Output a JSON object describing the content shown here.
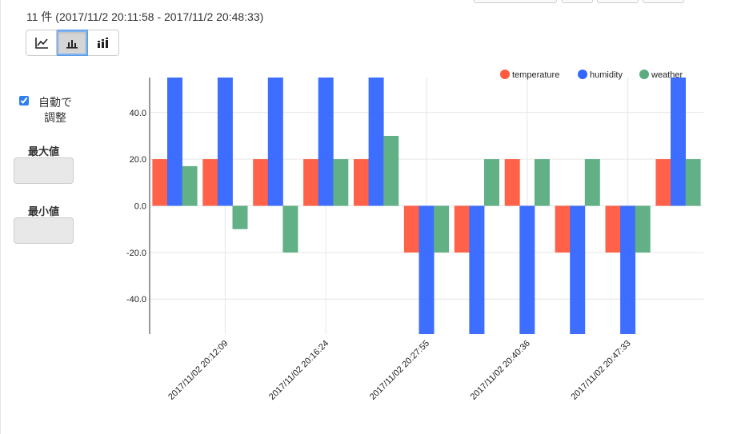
{
  "header": {
    "summary": "11 件 (2017/11/2 20:11:58 - 2017/11/2 20:48:33)"
  },
  "toolbar": {
    "buttons": [
      {
        "name": "line-chart-button",
        "icon": "line-chart-icon",
        "active": false
      },
      {
        "name": "bar-chart-button",
        "icon": "bar-chart-icon",
        "active": true
      },
      {
        "name": "stacked-bar-chart-button",
        "icon": "stacked-bar-chart-icon",
        "active": false
      }
    ]
  },
  "sidebar": {
    "autoscale_label": "自動で調整",
    "autoscale_checked": true,
    "max_label": "最大値",
    "max_value": "",
    "min_label": "最小値",
    "min_value": ""
  },
  "colors": {
    "temperature": "#ff5a3f",
    "humidity": "#3366ff",
    "weather": "#5aac7e",
    "grid": "#e6e6e6",
    "axis": "#333333"
  },
  "chart_data": {
    "type": "bar",
    "ylim": [
      -55,
      55
    ],
    "yticks": [
      40,
      20,
      0,
      -20,
      -40
    ],
    "ytick_labels": [
      "40.0",
      "20.0",
      "0.0",
      "-20.0",
      "-40.0"
    ],
    "grid": true,
    "legend_position": "top-right",
    "categories": [
      "",
      "2017/11/02 20:12:09",
      "",
      "2017/11/02 20:16:24",
      "",
      "2017/11/02 20:27:55",
      "",
      "2017/11/02 20:40:36",
      "",
      "2017/11/02 20:47:33",
      ""
    ],
    "series": [
      {
        "name": "temperature",
        "color": "#ff5a3f",
        "values": [
          20,
          20,
          20,
          20,
          20,
          -20,
          -20,
          20,
          -20,
          -20,
          20
        ]
      },
      {
        "name": "humidity",
        "color": "#3366ff",
        "values": [
          60,
          60,
          60,
          60,
          60,
          -60,
          -60,
          -60,
          -60,
          -60,
          60
        ]
      },
      {
        "name": "weather",
        "color": "#5aac7e",
        "values": [
          17,
          -10,
          -20,
          20,
          30,
          -20,
          20,
          20,
          20,
          -20,
          20
        ]
      }
    ]
  }
}
